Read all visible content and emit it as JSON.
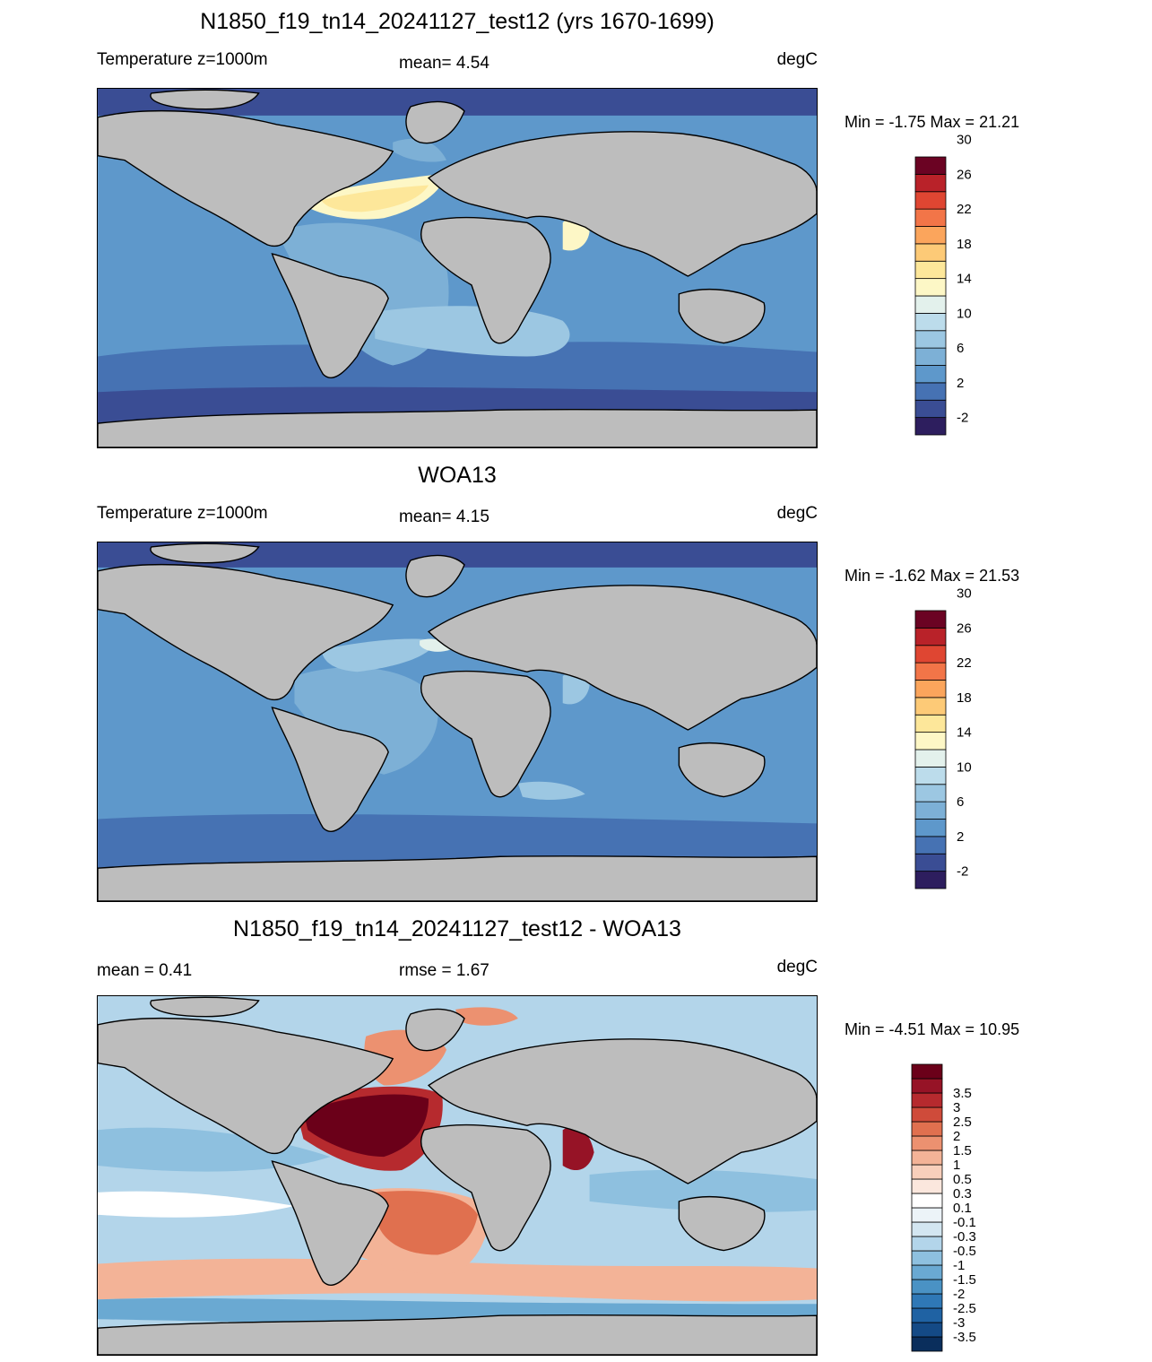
{
  "panels": [
    {
      "title": "N1850_f19_tn14_20241127_test12 (yrs 1670-1699)",
      "left_label": "Temperature z=1000m",
      "mid_label": "mean=   4.54",
      "units": "degC",
      "minmax": "Min =  -1.75 Max =  21.21",
      "colorbar": {
        "colors": [
          "#2d1e5e",
          "#3a4d94",
          "#4672b3",
          "#5e98cb",
          "#7db0d6",
          "#9cc7e2",
          "#bcdceb",
          "#e3f1ec",
          "#fdf7c6",
          "#fde79a",
          "#fdca77",
          "#fba55c",
          "#f27548",
          "#df4632",
          "#b92229",
          "#6b0323"
        ],
        "labels": [
          "-2",
          "2",
          "6",
          "10",
          "14",
          "18",
          "22",
          "26",
          "30"
        ]
      }
    },
    {
      "title": "WOA13",
      "left_label": "Temperature z=1000m",
      "mid_label": "mean=   4.15",
      "units": "degC",
      "minmax": "Min =  -1.62 Max =  21.53",
      "colorbar": {
        "colors": [
          "#2d1e5e",
          "#3a4d94",
          "#4672b3",
          "#5e98cb",
          "#7db0d6",
          "#9cc7e2",
          "#bcdceb",
          "#e3f1ec",
          "#fdf7c6",
          "#fde79a",
          "#fdca77",
          "#fba55c",
          "#f27548",
          "#df4632",
          "#b92229",
          "#6b0323"
        ],
        "labels": [
          "-2",
          "2",
          "6",
          "10",
          "14",
          "18",
          "22",
          "26",
          "30"
        ]
      }
    },
    {
      "title": "N1850_f19_tn14_20241127_test12 - WOA13",
      "left_label": "mean =   0.41",
      "mid_label": "rmse =   1.67",
      "units": "degC",
      "minmax": "Min =  -4.51 Max =  10.95",
      "colorbar": {
        "colors": [
          "#0a2e5c",
          "#144a86",
          "#1f62a3",
          "#2f78b6",
          "#4a92c4",
          "#6aa9d2",
          "#8ec0df",
          "#b3d5ea",
          "#d3e6f1",
          "#ecf3f8",
          "#ffffff",
          "#fbe7dd",
          "#f8cfbb",
          "#f3b397",
          "#ec9170",
          "#e0704f",
          "#cf4b3a",
          "#b62a2e",
          "#961326",
          "#6b0019"
        ],
        "labels": [
          "-3.5",
          "-3",
          "-2.5",
          "-2",
          "-1.5",
          "-1",
          "-0.5",
          "-0.3",
          "-0.1",
          "0.1",
          "0.3",
          "0.5",
          "1",
          "1.5",
          "2",
          "2.5",
          "3",
          "3.5"
        ]
      }
    }
  ]
}
